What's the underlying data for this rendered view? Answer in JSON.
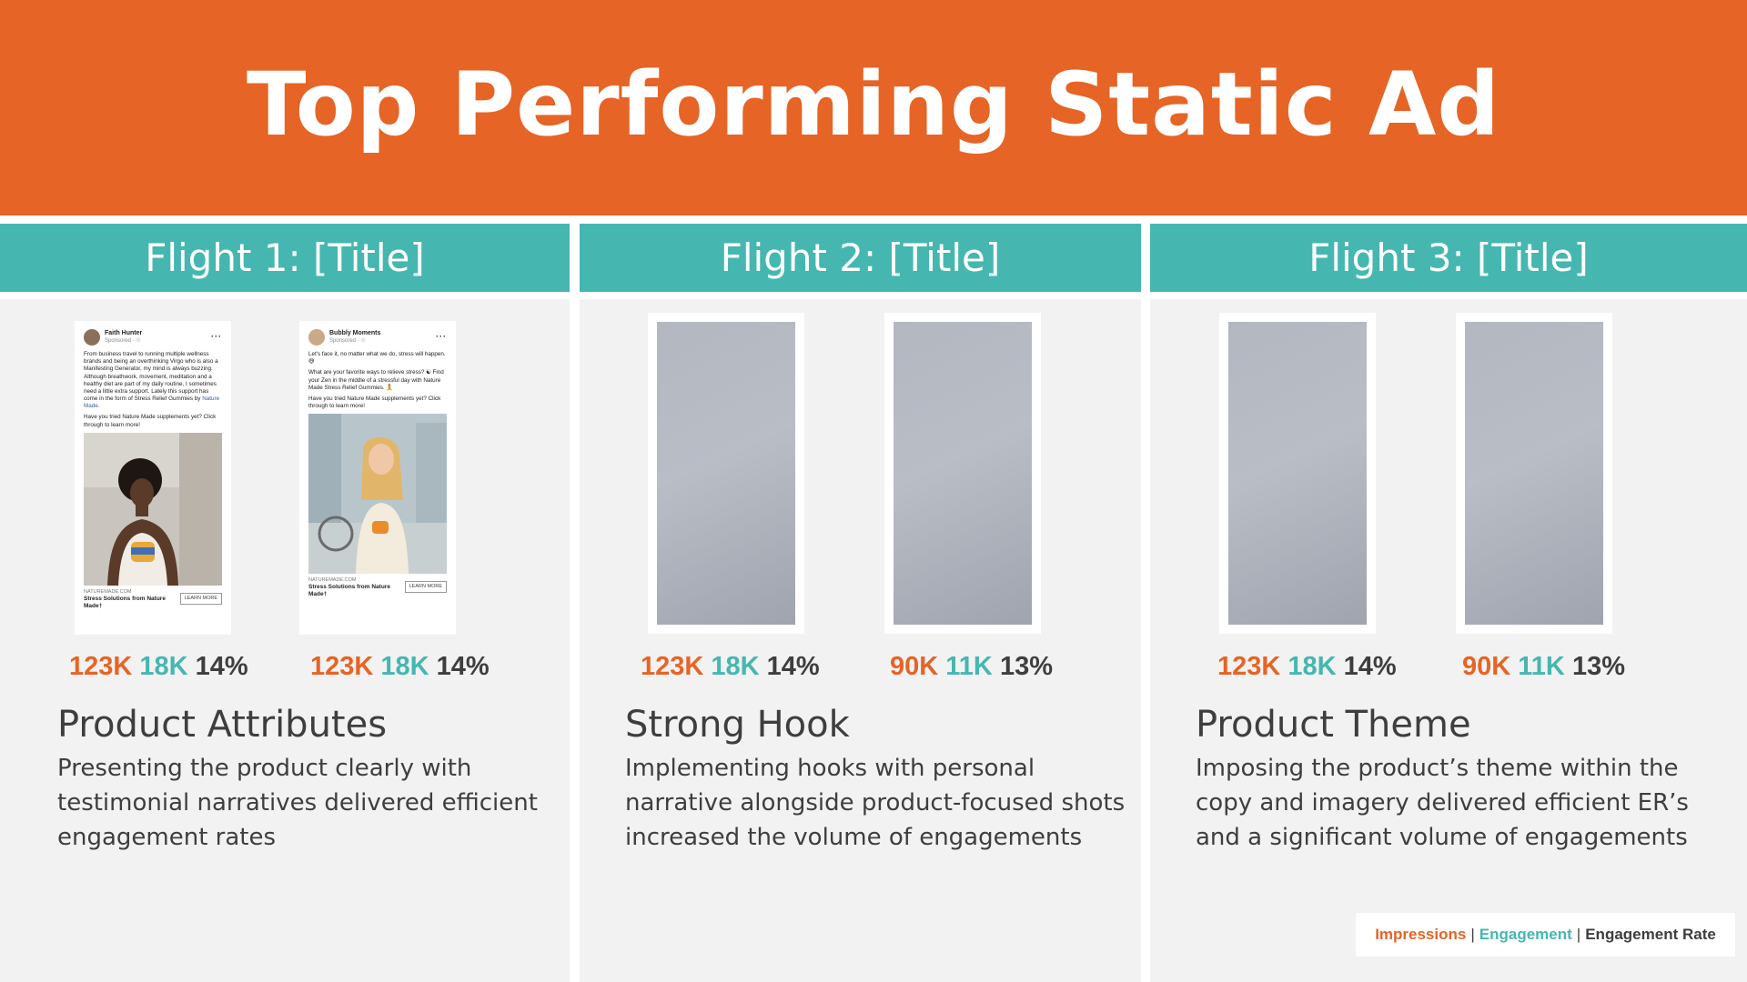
{
  "title": "Top Performing Static Ad",
  "flights": [
    {
      "header": "Flight 1: [Title]",
      "ads": [
        {
          "type": "real",
          "account": "Faith Hunter",
          "sponsored": "Sponsored · ☉",
          "copy": "From business travel to running multiple wellness brands and being an overthinking Virgo who is also a Manifesting Generator, my mind is always buzzing. Although breathwork, movement, meditation and a healthy diet are part of my daily routine, I sometimes need a little extra support. Lately this support has come in the form of Stress Relief Gummies by ",
          "copy_link": "Nature Made.",
          "copy2": "Have you tried Nature Made supplements yet? Click through to learn more!",
          "domain": "NATUREMADE.COM",
          "headline": "Stress Solutions from Nature Made†",
          "cta": "LEARN MORE",
          "impressions": "123K",
          "engagement": "18K",
          "rate": "14%"
        },
        {
          "type": "real",
          "account": "Bubbly Moments",
          "sponsored": "Sponsored · ☉",
          "copy": "Let's face it, no matter what we do, stress will happen. 😅",
          "copy_link": "",
          "copy2": "What are your favorite ways to relieve stress? ☯ Find your Zen in the middle of a stressful day with Nature Made Stress Relief Gummies. 🧘",
          "copy3": "Have you tried Nature Made supplements yet? Click through to learn more!",
          "domain": "NATUREMADE.COM",
          "headline": "Stress Solutions from Nature Made†",
          "cta": "LEARN MORE",
          "impressions": "123K",
          "engagement": "18K",
          "rate": "14%"
        }
      ],
      "theme": "Product Attributes",
      "description": "Presenting the product clearly with testimonial narratives delivered efficient engagement rates"
    },
    {
      "header": "Flight 2: [Title]",
      "ads": [
        {
          "type": "placeholder",
          "impressions": "123K",
          "engagement": "18K",
          "rate": "14%"
        },
        {
          "type": "placeholder",
          "impressions": "90K",
          "engagement": "11K",
          "rate": "13%"
        }
      ],
      "theme": "Strong Hook",
      "description": "Implementing hooks with personal narrative alongside product-focused shots increased the volume of engagements"
    },
    {
      "header": "Flight 3: [Title]",
      "ads": [
        {
          "type": "placeholder",
          "impressions": "123K",
          "engagement": "18K",
          "rate": "14%"
        },
        {
          "type": "placeholder",
          "impressions": "90K",
          "engagement": "11K",
          "rate": "13%"
        }
      ],
      "theme": "Product Theme",
      "description": "Imposing the product’s theme within the copy and imagery delivered efficient ER’s and a significant volume of engagements"
    }
  ],
  "legend": {
    "impressions": "Impressions",
    "separator": "|",
    "engagement": "Engagement",
    "rate": "Engagement Rate"
  },
  "colors": {
    "header_bg": "#e66425",
    "flight_header_bg": "#45b7b0",
    "impressions": "#e66425",
    "engagement": "#45b7b0",
    "rate": "#3e3e3e"
  }
}
